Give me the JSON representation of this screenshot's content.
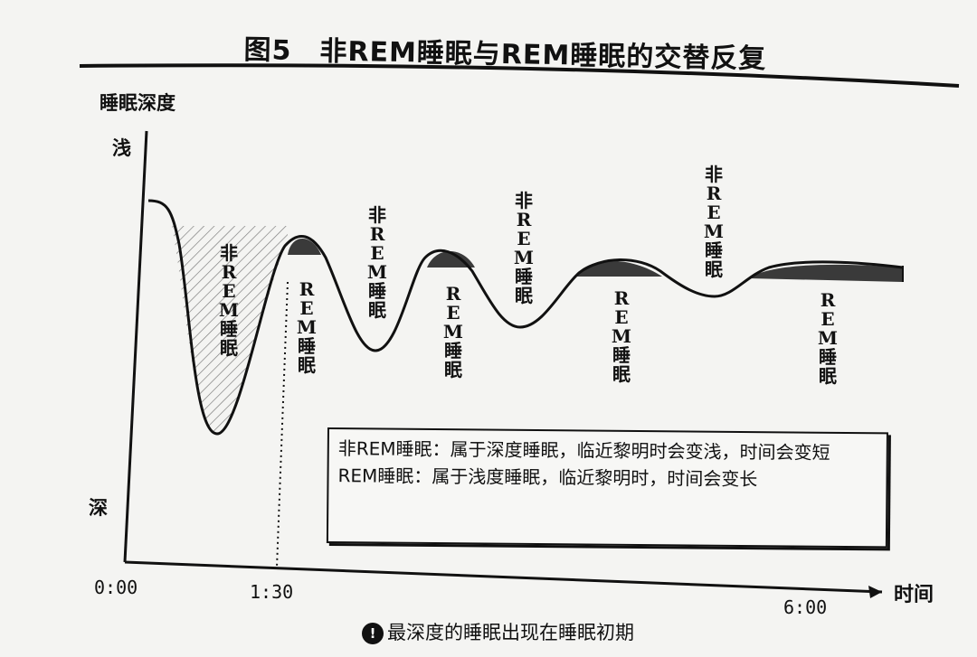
{
  "figure": {
    "title": "图5　非REM睡眠与REM睡眠的交替反复",
    "caption_badge": "!",
    "caption": "最深度的睡眠出现在睡眠初期"
  },
  "chart_data": {
    "type": "line",
    "title": "图5　非REM睡眠与REM睡眠的交替反复",
    "ylabel": "睡眠深度",
    "xlabel": "时间",
    "y_top_label": "浅",
    "y_bottom_label": "深",
    "x_ticks": [
      "0:00",
      "1:30",
      "6:00"
    ],
    "curve_labels": {
      "nrem": "非REM睡眠",
      "rem": "REM睡眠",
      "nrem_positions": [
        "cycle1",
        "cycle2",
        "cycle3",
        "cycle4"
      ],
      "rem_positions": [
        "cycle1",
        "cycle2",
        "cycle3",
        "cycle4"
      ]
    },
    "reference_line": {
      "x": "1:30",
      "style": "dotted"
    },
    "legend": {
      "nrem_text": "非REM睡眠：属于深度睡眠，临近黎明时会变浅，时间会变短",
      "rem_text": "REM睡眠：属于浅度睡眠，临近黎明时，时间会变长"
    },
    "shading": {
      "first_nrem": "hatched",
      "rem_peaks": "solid-dark"
    },
    "grid": false,
    "curve_color": "#111111"
  }
}
